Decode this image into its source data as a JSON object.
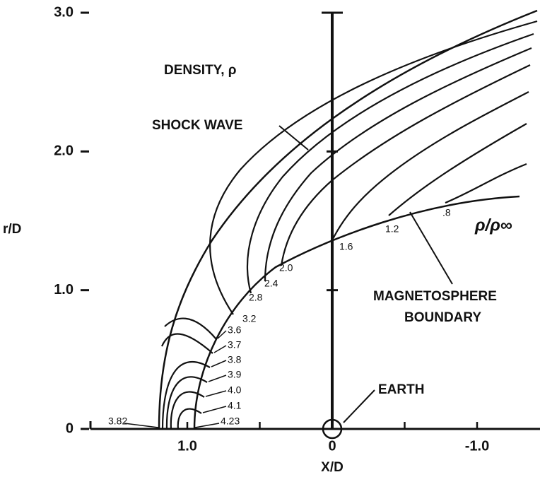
{
  "chart_data": {
    "type": "contour",
    "title": "DENSITY, ρ",
    "xlabel": "X/D",
    "ylabel": "r/D",
    "xlim": [
      1.6,
      -1.4
    ],
    "ylim": [
      0,
      3.0
    ],
    "xticks": [
      {
        "value": 1,
        "label": "1.0"
      },
      0,
      {
        "value": -1,
        "label": "-1.0"
      }
    ],
    "minor_xticks": [
      0.5,
      -0.5
    ],
    "yticks": [
      0,
      {
        "value": 1,
        "label": "1.0"
      },
      {
        "value": 2,
        "label": "2.0"
      },
      {
        "value": 3,
        "label": "3.0"
      }
    ],
    "annotations": [
      "SHOCK WAVE",
      "MAGNETOSPHERE",
      "BOUNDARY",
      "EARTH",
      "ρ/ρ∞"
    ],
    "contours": [
      3.82,
      4.23,
      4.1,
      {
        "value": 4,
        "label": "4.0"
      },
      3.9,
      3.8,
      3.7,
      3.6,
      3.2,
      2.8,
      2.4,
      {
        "value": 2,
        "label": "2.0"
      },
      1.6,
      1.2,
      {
        "value": 0.8,
        "label": ".8"
      }
    ]
  }
}
